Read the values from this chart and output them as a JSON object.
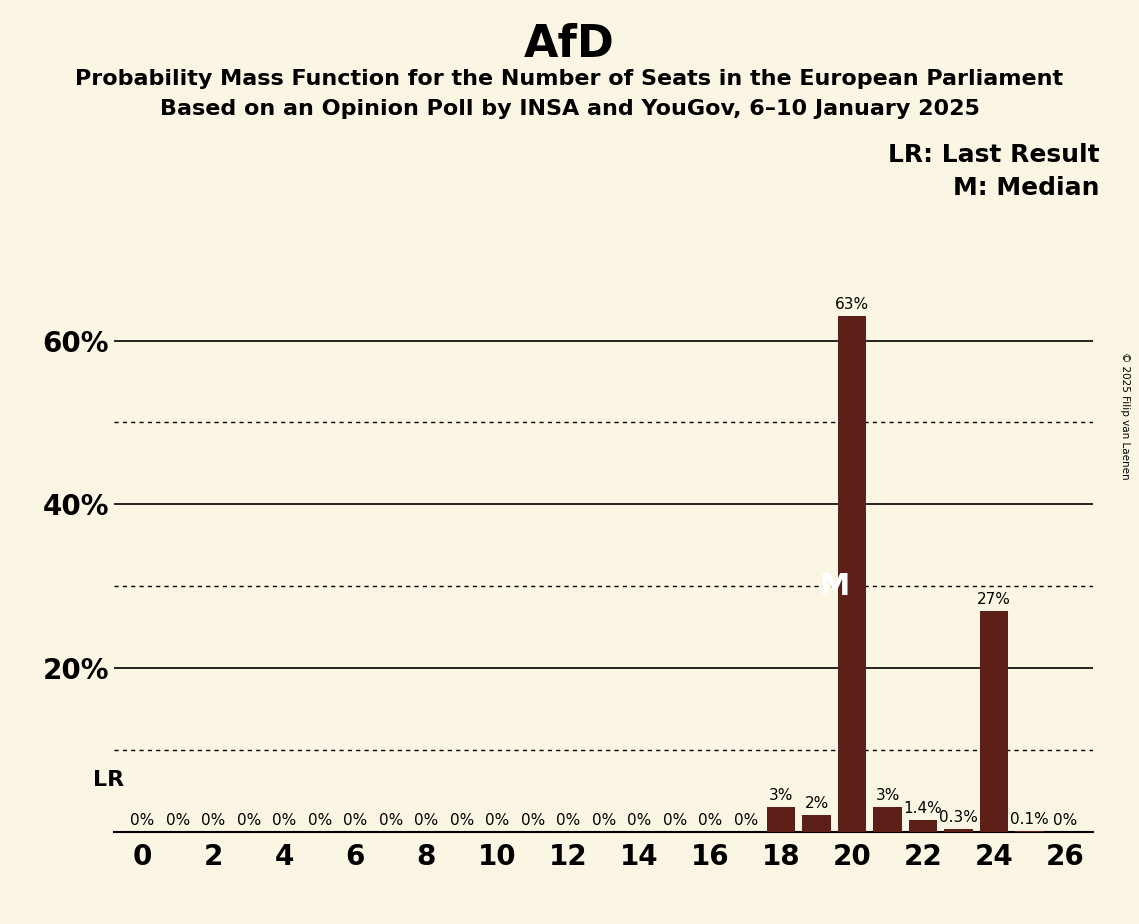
{
  "title": "AfD",
  "subtitle1": "Probability Mass Function for the Number of Seats in the European Parliament",
  "subtitle2": "Based on an Opinion Poll by INSA and YouGov, 6–10 January 2025",
  "copyright": "© 2025 Filip van Laenen",
  "background_color": "#FAF6E3",
  "bar_color": "#5C2018",
  "x_min": 0,
  "x_max": 26,
  "x_step": 2,
  "y_min": 0,
  "y_max": 70,
  "seats": [
    0,
    1,
    2,
    3,
    4,
    5,
    6,
    7,
    8,
    9,
    10,
    11,
    12,
    13,
    14,
    15,
    16,
    17,
    18,
    19,
    20,
    21,
    22,
    23,
    24,
    25,
    26
  ],
  "probabilities": [
    0,
    0,
    0,
    0,
    0,
    0,
    0,
    0,
    0,
    0,
    0,
    0,
    0,
    0,
    0,
    0,
    0,
    0,
    3,
    2,
    63,
    3,
    1.4,
    0.3,
    27,
    0.1,
    0
  ],
  "bar_labels": [
    "0%",
    "0%",
    "0%",
    "0%",
    "0%",
    "0%",
    "0%",
    "0%",
    "0%",
    "0%",
    "0%",
    "0%",
    "0%",
    "0%",
    "0%",
    "0%",
    "0%",
    "0%",
    "3%",
    "2%",
    "63%",
    "3%",
    "1.4%",
    "0.3%",
    "27%",
    "0.1%",
    "0%"
  ],
  "median_seat": 20,
  "lr_seat": 0,
  "legend_lr": "LR: Last Result",
  "legend_m": "M: Median",
  "solid_lines": [
    0,
    20,
    40,
    60
  ],
  "dotted_lines": [
    10,
    30,
    50
  ],
  "y_tick_labels": [
    "",
    "20%",
    "40%",
    "60%"
  ],
  "y_tick_values": [
    0,
    20,
    40,
    60
  ],
  "title_fontsize": 32,
  "subtitle_fontsize": 16,
  "axis_label_fontsize": 20,
  "bar_label_fontsize": 11,
  "legend_fontsize": 18
}
